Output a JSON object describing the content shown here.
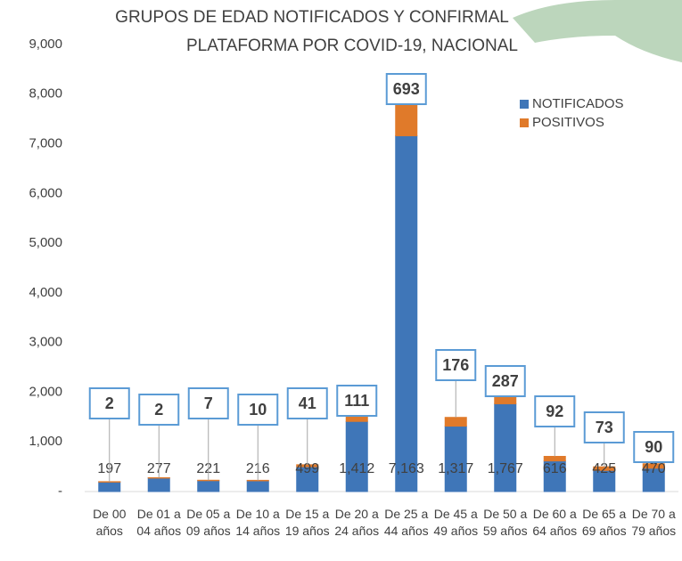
{
  "chart_data": {
    "type": "stacked-bar",
    "title": "GRUPOS DE EDAD NOTIFICADOS Y CONFIRMAL",
    "subtitle": "PLATAFORMA POR  COVID-19, NACIONAL",
    "categories": [
      "De 00 años",
      "De 01 a 04 años",
      "De 05 a 09 años",
      "De 10 a 14 años",
      "De 15 a 19 años",
      "De 20 a 24 años",
      "De 25 a 44 años",
      "De 45 a 49 años",
      "De 50 a 59 años",
      "De 60 a 64 años",
      "De 65 a 69 años",
      "De 70 a 79 años"
    ],
    "series": [
      {
        "name": "NOTIFICADOS",
        "color": "#3f76b8",
        "values": [
          197,
          277,
          221,
          216,
          499,
          1412,
          7163,
          1317,
          1767,
          616,
          425,
          470
        ],
        "value_labels": [
          "197",
          "277",
          "221",
          "216",
          "499",
          "1,412",
          "7,163",
          "1,317",
          "1,767",
          "616",
          "425",
          "470"
        ]
      },
      {
        "name": "POSITIVOS",
        "color": "#e07a2a",
        "values": [
          2,
          2,
          7,
          10,
          41,
          111,
          693,
          176,
          287,
          92,
          73,
          90
        ]
      }
    ],
    "ylim": [
      0,
      9000
    ],
    "yticks": [
      {
        "value": 0,
        "label": "-"
      },
      {
        "value": 1000,
        "label": "1,000"
      },
      {
        "value": 2000,
        "label": "2,000"
      },
      {
        "value": 3000,
        "label": "3,000"
      },
      {
        "value": 4000,
        "label": "4,000"
      },
      {
        "value": 5000,
        "label": "5,000"
      },
      {
        "value": 6000,
        "label": "6,000"
      },
      {
        "value": 7000,
        "label": "7,000"
      },
      {
        "value": 8000,
        "label": "8,000"
      },
      {
        "value": 9000,
        "label": "9,000"
      }
    ],
    "legend": "top-right"
  }
}
